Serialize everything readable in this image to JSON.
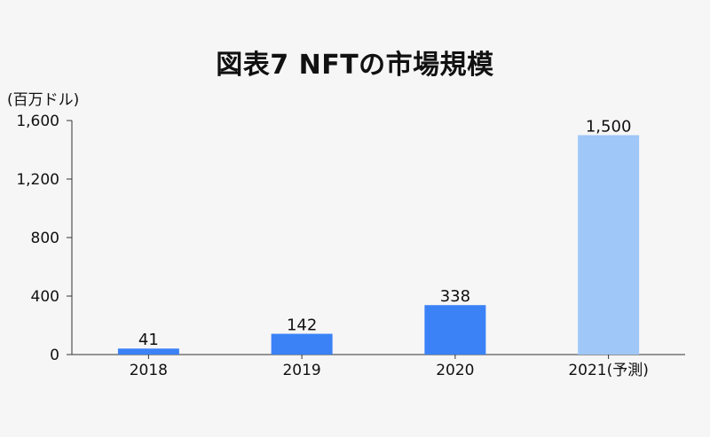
{
  "chart_data": {
    "type": "bar",
    "title": "図表7 NFTの市場規模",
    "ylabel": "(百万ドル)",
    "xlabel": "",
    "categories": [
      "2018",
      "2019",
      "2020",
      "2021(予測)"
    ],
    "values": [
      41,
      142,
      338,
      1500
    ],
    "value_labels": [
      "41",
      "142",
      "338",
      "1,500"
    ],
    "yticks": [
      0,
      400,
      800,
      1200,
      1600
    ],
    "ytick_labels": [
      "0",
      "400",
      "800",
      "1,200",
      "1,600"
    ],
    "ylim": [
      0,
      1600
    ],
    "bar_colors": [
      "#3b82f6",
      "#3b82f6",
      "#3b82f6",
      "#9fc8f9"
    ],
    "grid": false,
    "legend": "none"
  }
}
